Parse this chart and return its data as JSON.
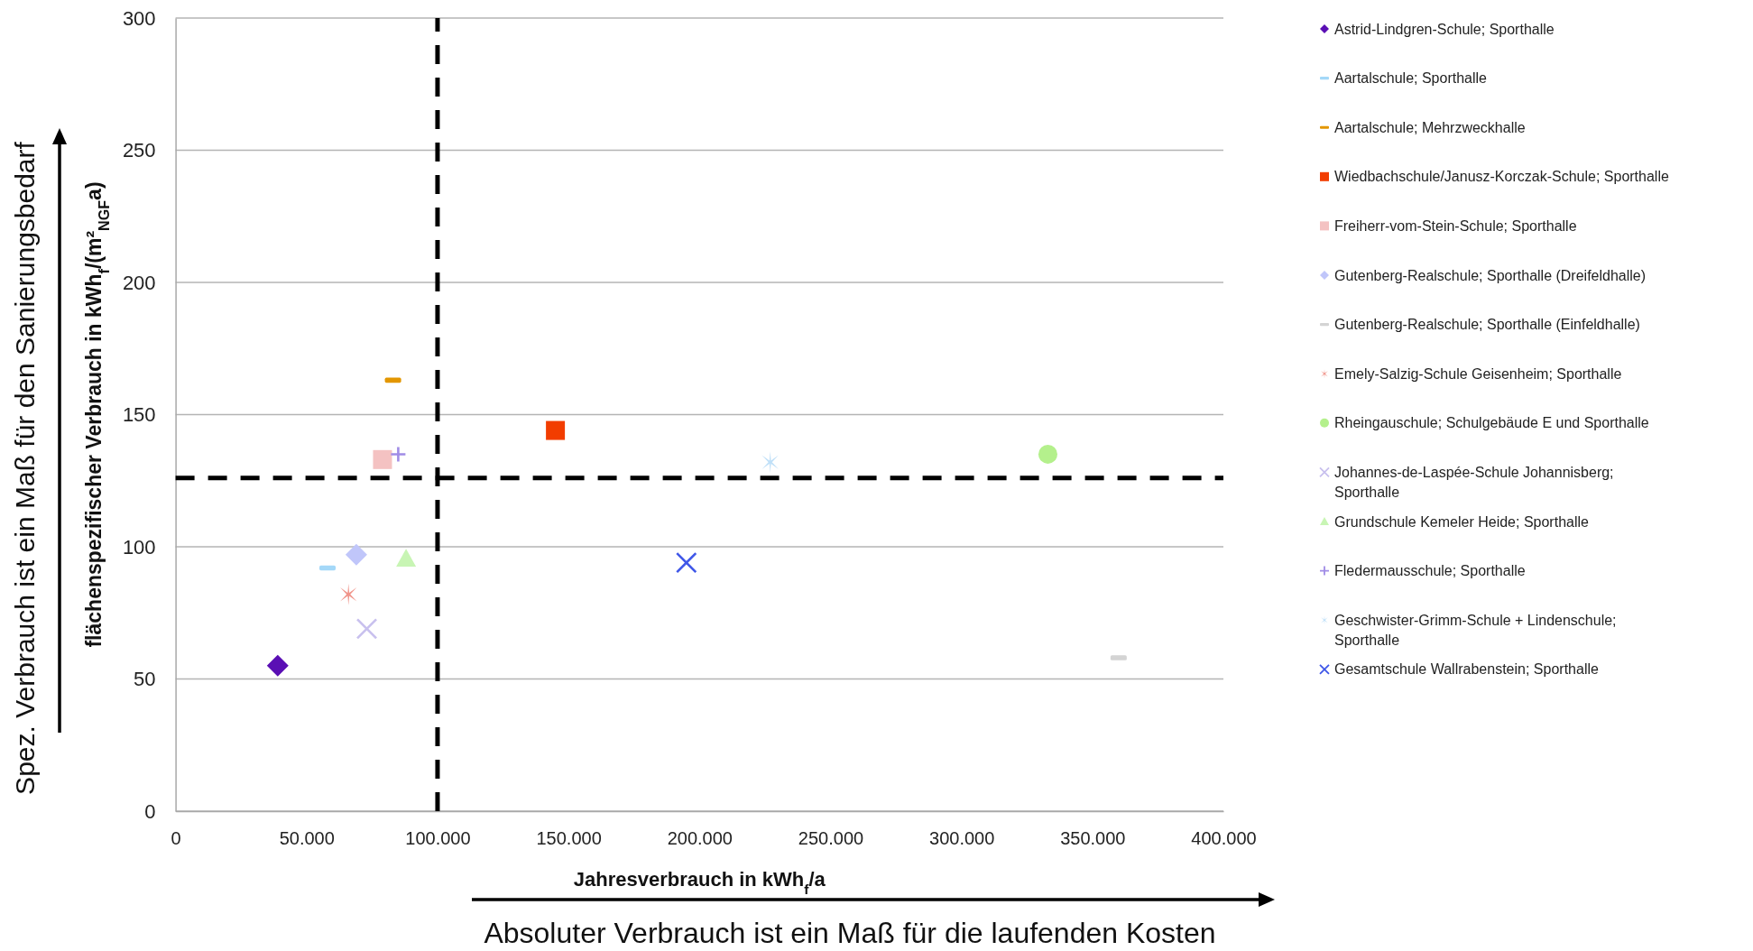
{
  "chart_data": {
    "type": "scatter",
    "xlabel": "Jahresverbrauch in kWh$_{f}$/a",
    "ylabel": "flächenspezifischer Verbrauch in kWh$_{f}$/(m²$_{NGF}$a)",
    "annotations": [
      "Spez. Verbrauch ist ein Maß für den Sanierungsbedarf",
      "Absoluter Verbrauch ist ein Maß für die laufenden Kosten"
    ],
    "xlim": [
      0,
      400000
    ],
    "xticks": [
      0,
      {
        "value": 50000,
        "label": "50.000"
      },
      {
        "value": 100000,
        "label": "100.000"
      },
      {
        "value": 150000,
        "label": "150.000"
      },
      {
        "value": 200000,
        "label": "200.000"
      },
      {
        "value": 250000,
        "label": "250.000"
      },
      {
        "value": 300000,
        "label": "300.000"
      },
      {
        "value": 350000,
        "label": "350.000"
      },
      {
        "value": 400000,
        "label": "400.000"
      }
    ],
    "ylim": [
      0,
      300
    ],
    "yticks": [
      0,
      50,
      100,
      150,
      200,
      250,
      300
    ],
    "grid": "y",
    "legend": "right",
    "ref_lines": [
      {
        "axis": "x",
        "value": 100000,
        "color": "#000000",
        "line_style": "dashed"
      },
      {
        "axis": "y",
        "value": 126,
        "color": "#000000",
        "line_style": "dashed"
      }
    ],
    "series": [
      {
        "name": "Astrid-Lindgren-Schule; Sporthalle",
        "color": "#5a0fb4",
        "marker": "diamond",
        "x": [
          39000
        ],
        "values": [
          55
        ]
      },
      {
        "name": "Aartalschule; Sporthalle",
        "color": "#a4d8f8",
        "x": [
          58000
        ],
        "values": [
          92
        ]
      },
      {
        "name": "Aartalschule; Mehrzweckhalle",
        "color": "#e39600",
        "x": [
          83000
        ],
        "values": [
          163
        ]
      },
      {
        "name": "Wiedbachschule/Janusz-Korczak-Schule; Sporthalle",
        "color": "#f23d00",
        "marker": "square",
        "x": [
          145000
        ],
        "values": [
          144
        ]
      },
      {
        "name": "Freiherr-vom-Stein-Schule; Sporthalle",
        "color": "#f4c2c2",
        "marker": "square",
        "x": [
          79000
        ],
        "values": [
          133
        ]
      },
      {
        "name": "Gutenberg-Realschule; Sporthalle (Dreifeldhalle)",
        "color": "#c0c6fa",
        "marker": "diamond",
        "x": [
          69000
        ],
        "values": [
          97
        ]
      },
      {
        "name": "Gutenberg-Realschule; Sporthalle (Einfeldhalle)",
        "color": "#d4d4d4",
        "x": [
          360000
        ],
        "values": [
          58
        ]
      },
      {
        "name": "Emely-Salzig-Schule Geisenheim; Sporthalle",
        "color": "#f0948a",
        "marker": "cross",
        "x": [
          66000
        ],
        "values": [
          82
        ]
      },
      {
        "name": "Rheingauschule; Schulgebäude E und Sporthalle",
        "color": "#b4f08c",
        "marker": "circle",
        "x": [
          333000
        ],
        "values": [
          135
        ]
      },
      {
        "name": "Johannes-de-Laspée-Schule Johannisberg; Sporthalle",
        "color": "#c8c0ee",
        "marker": "x",
        "x": [
          73000
        ],
        "values": [
          69
        ]
      },
      {
        "name": "Grundschule Kemeler Heide; Sporthalle",
        "color": "#c8f5b4",
        "marker": "triangle",
        "x": [
          88000
        ],
        "values": [
          95.5
        ]
      },
      {
        "name": "Fledermausschule; Sporthalle",
        "color": "#a08ce6",
        "marker": "plus",
        "x": [
          85000
        ],
        "values": [
          135
        ]
      },
      {
        "name": "Geschwister-Grimm-Schule + Lindenschule; Sporthalle",
        "color": "#c0e0f8",
        "marker": "cross",
        "x": [
          227000
        ],
        "values": [
          132
        ]
      },
      {
        "name": "Gesamtschule Wallrabenstein; Sporthalle",
        "color": "#3f57e8",
        "marker": "x",
        "x": [
          195000
        ],
        "values": [
          94
        ]
      }
    ]
  }
}
